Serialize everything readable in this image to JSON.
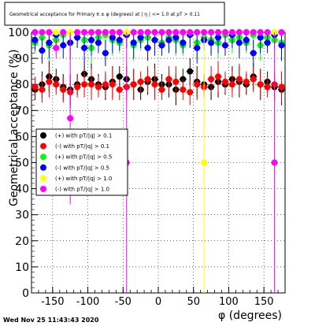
{
  "colors": {
    "background": "#ffffff",
    "axis": "#000000",
    "grid": "#000000",
    "black": "#000000",
    "red": "#ff0000",
    "green": "#00ff00",
    "blue": "#0000ff",
    "yellow": "#ffff00",
    "magenta": "#ff00ff"
  },
  "timestamp": "Wed Nov 25 11:43:43 2020",
  "chart_data": {
    "type": "scatter",
    "title": "Geometrical acceptance for Primary π ± φ (degrees) at | η | <= 1.0 at pT > 0.11",
    "xlabel": "φ (degrees)",
    "ylabel": "Geometrical acceptance (%)",
    "xlim": [
      -180,
      180
    ],
    "ylim": [
      0,
      100
    ],
    "xticks": [
      -150,
      -100,
      -50,
      0,
      50,
      100,
      150
    ],
    "yticks": [
      0,
      10,
      20,
      30,
      40,
      50,
      60,
      70,
      80,
      90,
      100
    ],
    "grid": true,
    "legend_position": "left-middle",
    "series": [
      {
        "name": "(+) with pT/|q| > 0.1",
        "color": "black",
        "x": [
          -175,
          -165,
          -155,
          -145,
          -135,
          -125,
          -115,
          -105,
          -95,
          -85,
          -75,
          -65,
          -55,
          -45,
          -35,
          -25,
          -15,
          -5,
          5,
          15,
          25,
          35,
          45,
          55,
          65,
          75,
          85,
          95,
          105,
          115,
          125,
          135,
          145,
          155,
          165,
          175
        ],
        "y": [
          78,
          80,
          83,
          82,
          79,
          78,
          80,
          84,
          82,
          80,
          79,
          81,
          83,
          82,
          80,
          78,
          81,
          82,
          80,
          80,
          78,
          82,
          85,
          81,
          80,
          79,
          81,
          80,
          82,
          81,
          80,
          83,
          80,
          81,
          79,
          78
        ]
      },
      {
        "name": "(-) with pT/|q| > 0.1",
        "color": "red",
        "x": [
          -175,
          -165,
          -155,
          -145,
          -135,
          -125,
          -115,
          -105,
          -95,
          -85,
          -75,
          -65,
          -55,
          -45,
          -35,
          -25,
          -15,
          -5,
          5,
          15,
          25,
          35,
          45,
          55,
          65,
          75,
          85,
          95,
          105,
          115,
          125,
          135,
          145,
          155,
          165,
          175
        ],
        "y": [
          79,
          78,
          81,
          80,
          78,
          77,
          79,
          80,
          80,
          79,
          80,
          80,
          78,
          79,
          80,
          81,
          82,
          80,
          78,
          82,
          81,
          78,
          77,
          80,
          79,
          82,
          83,
          81,
          80,
          82,
          81,
          82,
          80,
          79,
          80,
          79
        ]
      },
      {
        "name": "(+) with pT/|q| > 0.5",
        "color": "green",
        "x": [
          -175,
          -165,
          -155,
          -145,
          -135,
          -125,
          -115,
          -105,
          -95,
          -85,
          -75,
          -65,
          -55,
          -45,
          -35,
          -25,
          -15,
          -5,
          5,
          15,
          25,
          35,
          45,
          55,
          65,
          75,
          85,
          95,
          105,
          115,
          125,
          135,
          145,
          155,
          165,
          175
        ],
        "y": [
          96,
          98,
          95,
          97,
          99,
          96,
          98,
          97,
          94,
          98,
          99,
          97,
          96,
          99,
          95,
          97,
          98,
          100,
          96,
          98,
          97,
          95,
          99,
          96,
          98,
          97,
          96,
          99,
          97,
          98,
          96,
          99,
          95,
          98,
          97,
          96
        ]
      },
      {
        "name": "(-) with pT/|q| > 0.5",
        "color": "blue",
        "x": [
          -175,
          -165,
          -155,
          -145,
          -135,
          -125,
          -115,
          -105,
          -95,
          -85,
          -75,
          -65,
          -55,
          -45,
          -35,
          -25,
          -15,
          -5,
          5,
          15,
          25,
          35,
          45,
          55,
          65,
          75,
          85,
          95,
          105,
          115,
          125,
          135,
          145,
          155,
          165,
          175
        ],
        "y": [
          97,
          93,
          96,
          99,
          95,
          96,
          98,
          94,
          97,
          96,
          92,
          98,
          97,
          99,
          96,
          98,
          94,
          97,
          95,
          97,
          98,
          96,
          99,
          94,
          97,
          96,
          98,
          95,
          99,
          96,
          97,
          92,
          98,
          96,
          99,
          95
        ]
      },
      {
        "name": "(+) with pT/|q| > 1.0",
        "color": "yellow",
        "x": [
          -175,
          -165,
          -155,
          -145,
          -135,
          -125,
          -115,
          -105,
          -95,
          -85,
          -75,
          -65,
          -55,
          -45,
          -35,
          -25,
          -15,
          -5,
          5,
          15,
          25,
          35,
          45,
          55,
          65,
          75,
          85,
          95,
          105,
          115,
          125,
          135,
          145,
          155,
          165,
          175
        ],
        "y": [
          100,
          100,
          100,
          100,
          100,
          100,
          100,
          100,
          100,
          100,
          100,
          100,
          100,
          100,
          100,
          100,
          100,
          100,
          100,
          100,
          100,
          100,
          100,
          100,
          50,
          100,
          100,
          100,
          100,
          100,
          100,
          100,
          100,
          100,
          100,
          100
        ]
      },
      {
        "name": "(-) with pT/|q| > 1.0",
        "color": "magenta",
        "x": [
          -175,
          -165,
          -155,
          -145,
          -135,
          -125,
          -115,
          -105,
          -95,
          -85,
          -75,
          -65,
          -55,
          -45,
          -35,
          -25,
          -15,
          -5,
          5,
          15,
          25,
          35,
          45,
          55,
          65,
          75,
          85,
          95,
          105,
          115,
          125,
          135,
          145,
          155,
          165,
          175
        ],
        "y": [
          100,
          100,
          100,
          94,
          100,
          67,
          100,
          100,
          100,
          100,
          100,
          100,
          100,
          50,
          100,
          100,
          100,
          100,
          100,
          100,
          100,
          100,
          100,
          100,
          100,
          100,
          100,
          100,
          100,
          100,
          100,
          100,
          100,
          100,
          50,
          100
        ]
      }
    ]
  }
}
